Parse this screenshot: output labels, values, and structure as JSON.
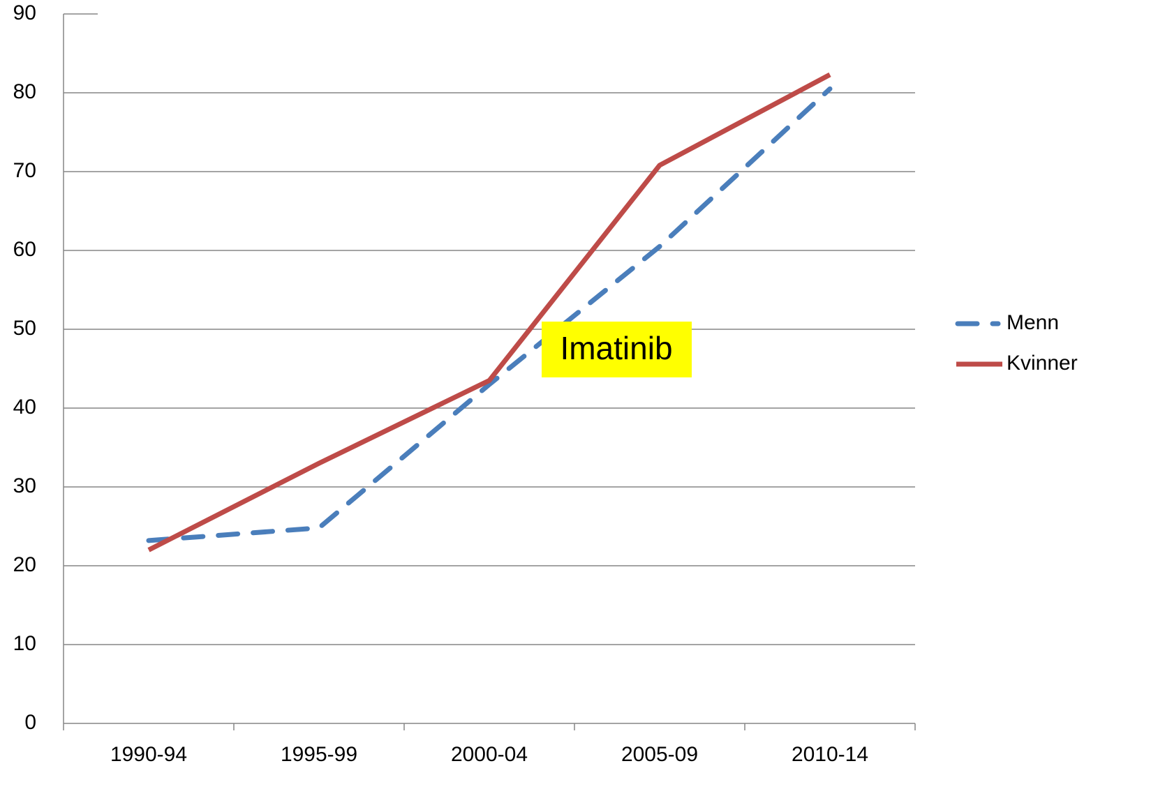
{
  "chart_data": {
    "type": "line",
    "categories": [
      "1990-94",
      "1995-99",
      "2000-04",
      "2005-09",
      "2010-14"
    ],
    "series": [
      {
        "name": "Menn",
        "color": "#4a7ebb",
        "dash": true,
        "values": [
          23.2,
          24.8,
          43,
          60.5,
          80.5
        ]
      },
      {
        "name": "Kvinner",
        "color": "#be4b48",
        "dash": false,
        "values": [
          22,
          33,
          43.5,
          70.8,
          82.3
        ]
      }
    ],
    "ylim": [
      0,
      90
    ],
    "yticks": [
      0,
      10,
      20,
      30,
      40,
      50,
      60,
      70,
      80,
      90
    ],
    "grid": true,
    "legend": "right",
    "annotation": "Imatinib"
  }
}
